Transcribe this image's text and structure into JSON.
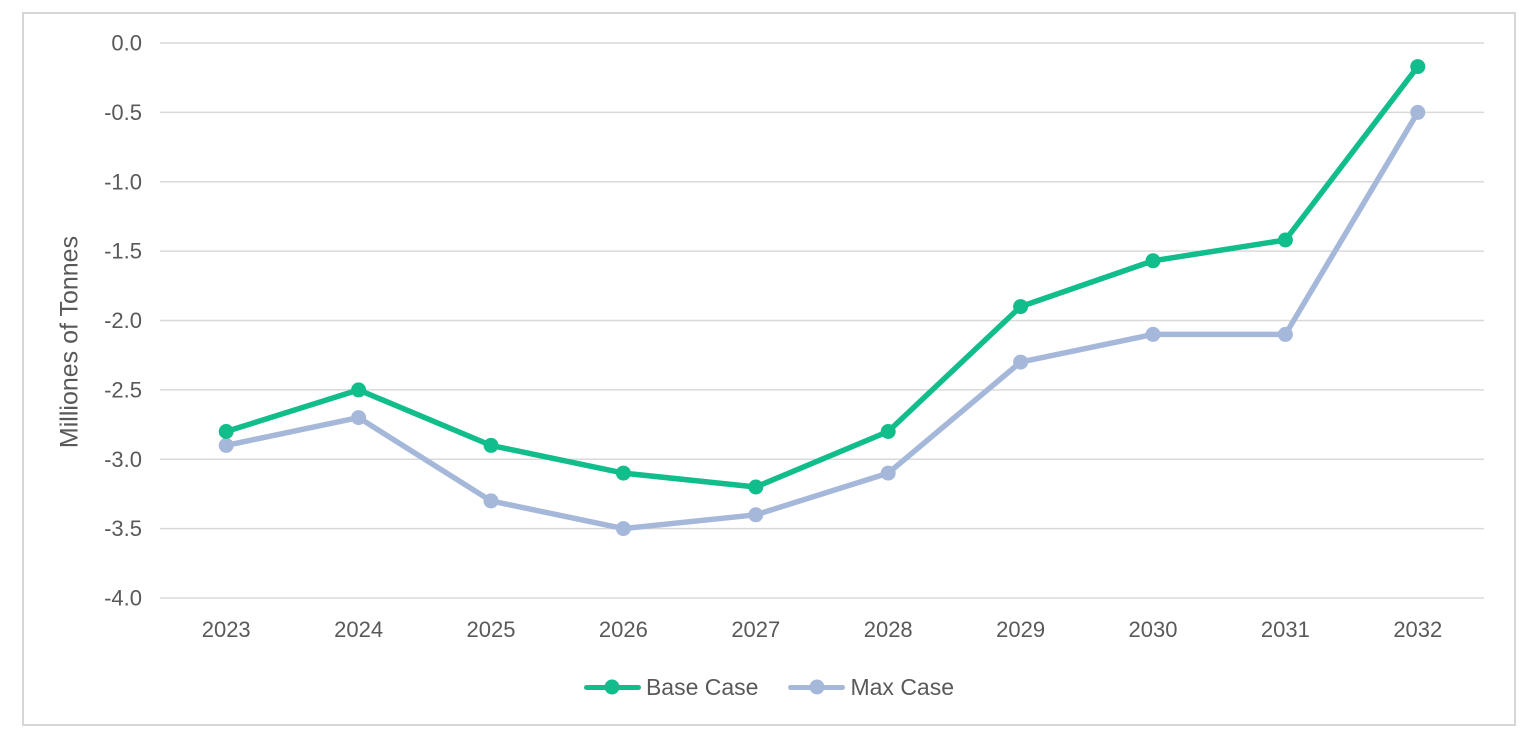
{
  "chart_data": {
    "type": "line",
    "title": "",
    "xlabel": "",
    "ylabel": "Milliones of Tonnes",
    "categories": [
      "2023",
      "2024",
      "2025",
      "2026",
      "2027",
      "2028",
      "2029",
      "2030",
      "2031",
      "2032"
    ],
    "series": [
      {
        "name": "Base Case",
        "color": "#12BD8C",
        "marker": "circle",
        "values": [
          -2.8,
          -2.5,
          -2.9,
          -3.1,
          -3.2,
          -2.8,
          -1.9,
          -1.57,
          -1.42,
          -0.17
        ]
      },
      {
        "name": "Max Case",
        "color": "#A6B8DA",
        "marker": "circle",
        "values": [
          -2.9,
          -2.7,
          -3.3,
          -3.5,
          -3.4,
          -3.1,
          -2.3,
          -2.1,
          -2.1,
          -0.5
        ]
      }
    ],
    "ylim": [
      -4.0,
      0.0
    ],
    "y_ticks": [
      0.0,
      -0.5,
      -1.0,
      -1.5,
      -2.0,
      -2.5,
      -3.0,
      -3.5,
      -4.0
    ],
    "y_tick_labels": [
      "0.0",
      "-0.5",
      "-1.0",
      "-1.5",
      "-2.0",
      "-2.5",
      "-3.0",
      "-3.5",
      "-4.0"
    ],
    "grid": "horizontal",
    "legend_position": "bottom"
  },
  "styles": {
    "gridline_color": "#D9D9D9",
    "axis_text_color": "#595959",
    "frame_border_color": "#D6D6D6",
    "background_color": "#FFFFFF"
  }
}
